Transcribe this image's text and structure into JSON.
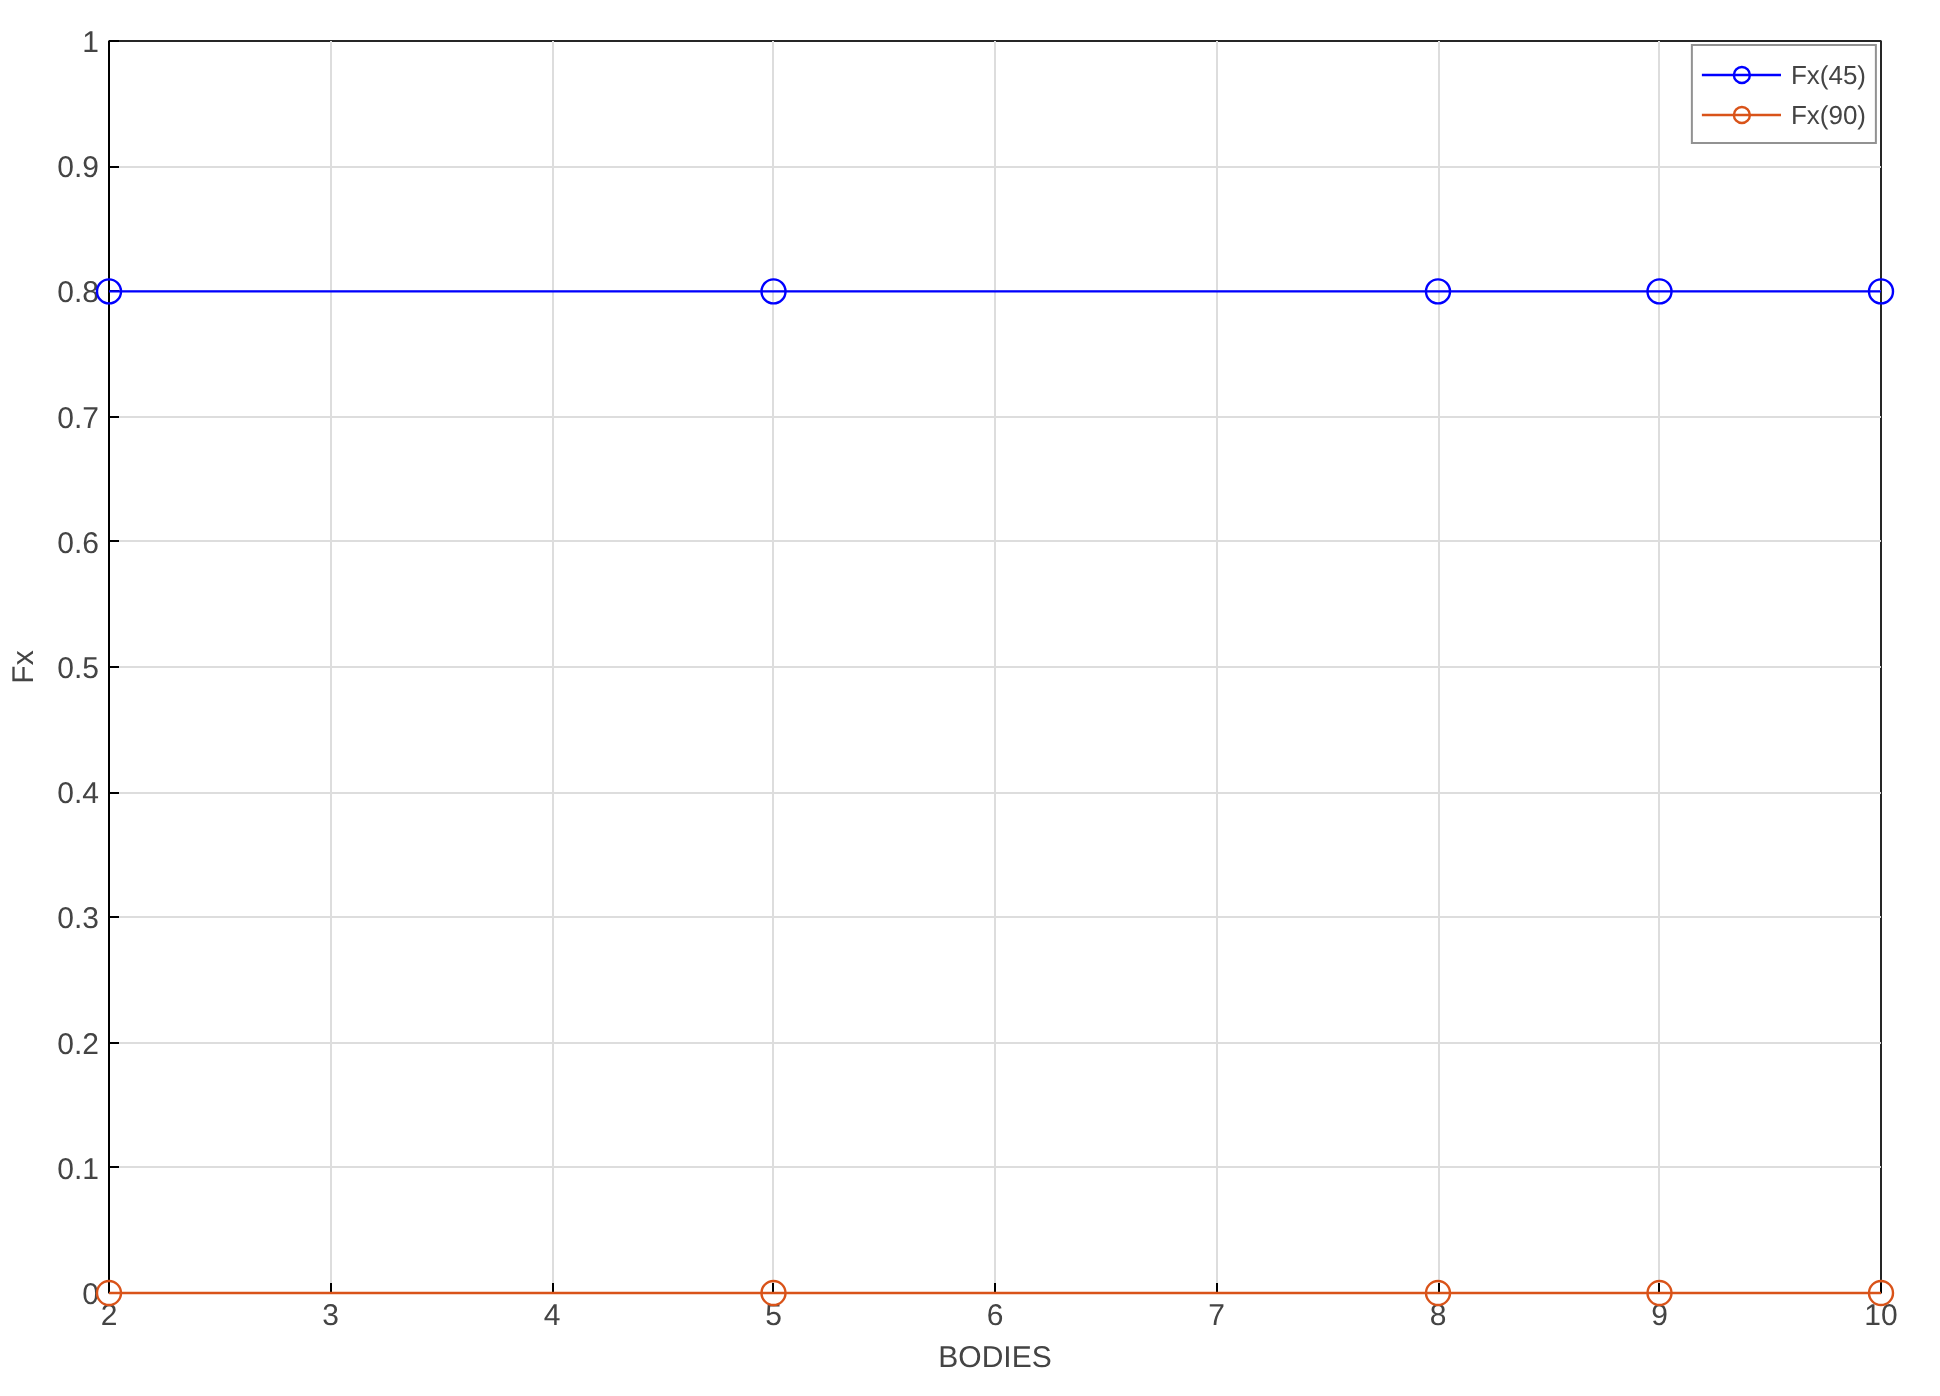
{
  "chart_data": {
    "type": "line",
    "xlabel": "BODIES",
    "ylabel": "Fx",
    "x": [
      2,
      5,
      8,
      9,
      10
    ],
    "series": [
      {
        "name": "Fx(45)",
        "color": "#0000ff",
        "values": [
          0.8,
          0.8,
          0.8,
          0.8,
          0.8
        ]
      },
      {
        "name": "Fx(90)",
        "color": "#d95319",
        "values": [
          0,
          0,
          0,
          0,
          0
        ]
      }
    ],
    "xlim": [
      2,
      10
    ],
    "xticks": [
      2,
      3,
      4,
      5,
      6,
      7,
      8,
      9,
      10
    ],
    "ylim": [
      0,
      1
    ],
    "yticks": [
      0,
      0.1,
      0.2,
      0.3,
      0.4,
      0.5,
      0.6,
      0.7,
      0.8,
      0.9,
      1
    ],
    "grid": true,
    "legend": "top right",
    "marker": "circle",
    "line_style": "solid"
  }
}
